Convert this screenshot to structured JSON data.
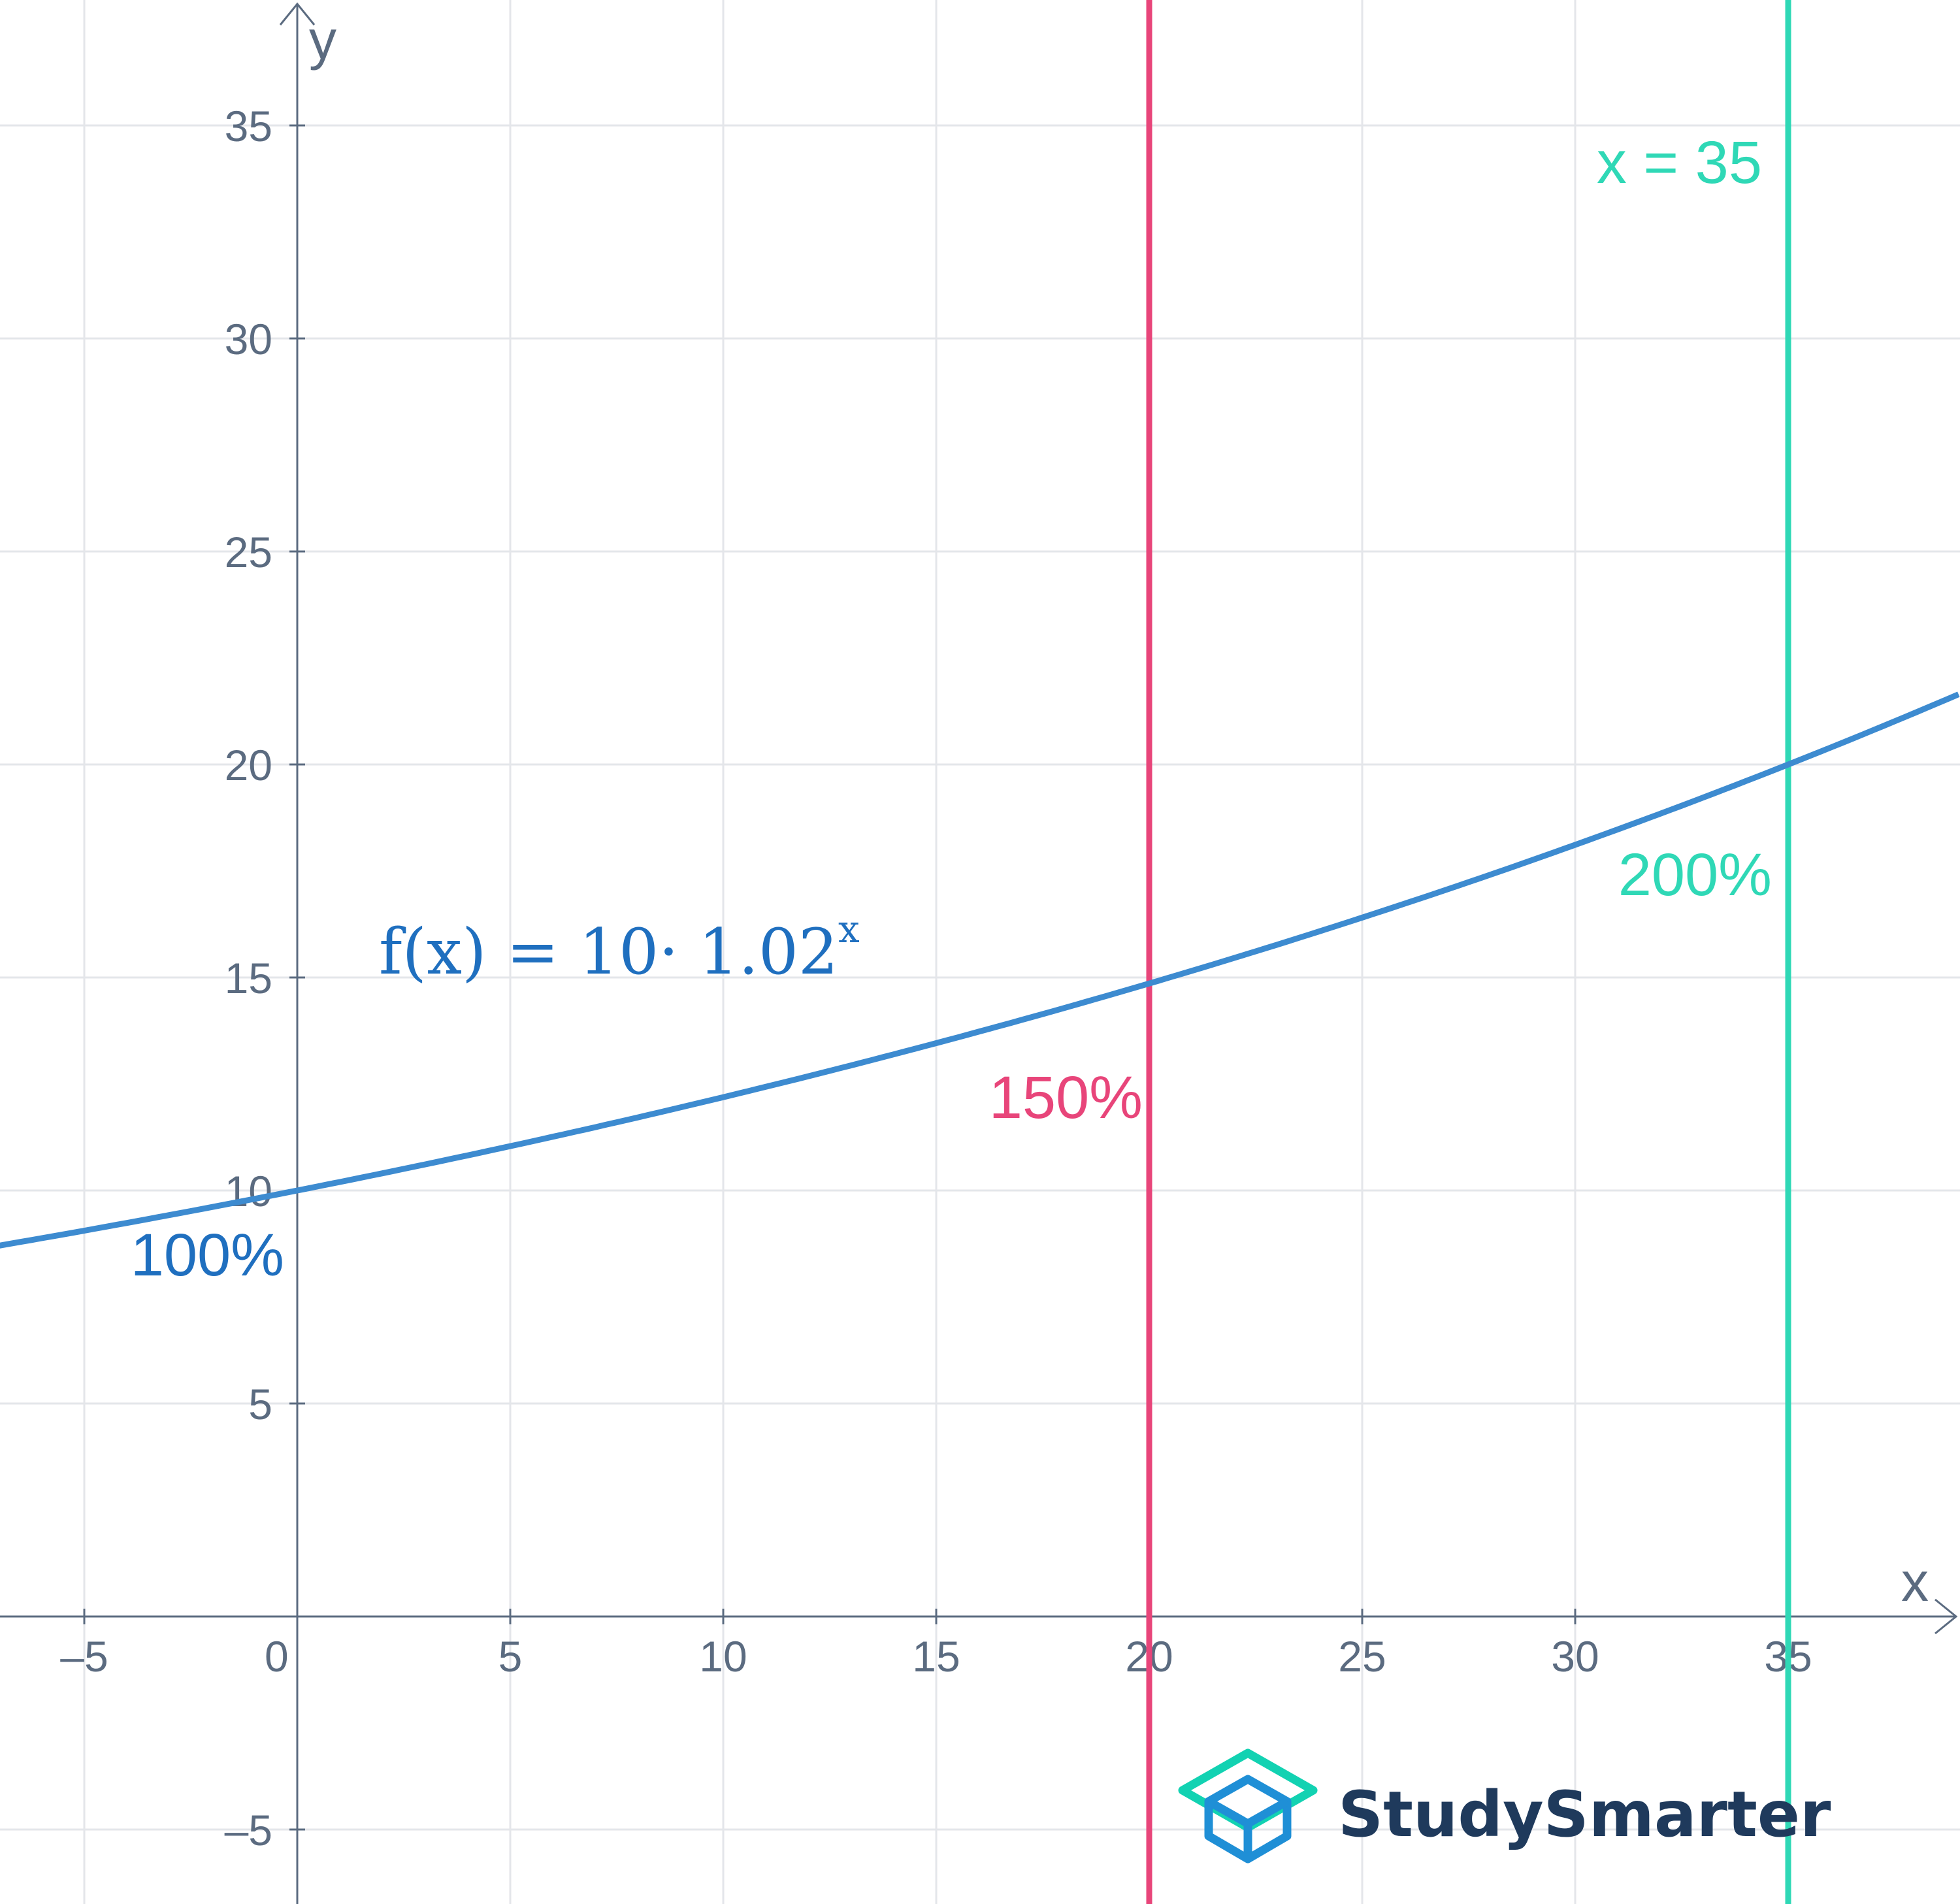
{
  "chart_data": {
    "type": "line",
    "title": "",
    "xlabel": "x",
    "ylabel": "y",
    "xlim": [
      -7,
      39
    ],
    "ylim": [
      -7,
      38
    ],
    "grid": true,
    "x_ticks": [
      -5,
      0,
      5,
      10,
      15,
      20,
      25,
      30,
      35
    ],
    "y_ticks": [
      -5,
      5,
      10,
      15,
      20,
      25,
      30,
      35
    ],
    "x_tick_labels": [
      "–5",
      "0",
      "5",
      "10",
      "15",
      "20",
      "25",
      "30",
      "35"
    ],
    "y_tick_labels": [
      "–5",
      "5",
      "10",
      "15",
      "20",
      "25",
      "30",
      "35"
    ],
    "series": [
      {
        "name": "f(x) = 10· 1.02",
        "exponent": "x",
        "color": "#3d8bd0",
        "label_color": "#1f6fbf",
        "base_value": 10,
        "growth_factor": 1.02
      }
    ],
    "vertical_lines": [
      {
        "x": 20,
        "color": "#e8457a"
      },
      {
        "x": 35,
        "color": "#2fd8b6",
        "label": "x = 35"
      }
    ],
    "annotations": [
      {
        "text": "100%",
        "x": 0,
        "y": 10,
        "color": "#1f6fbf"
      },
      {
        "text": "150%",
        "x": 20,
        "y": 15,
        "color": "#e8457a"
      },
      {
        "text": "200%",
        "x": 35,
        "y": 20,
        "color": "#2fd8b6"
      }
    ]
  },
  "branding": {
    "name": "StudySmarter",
    "logo_icon": "graduation-cap-cube-icon",
    "logo_colors": [
      "#12d2b2",
      "#1f8fd6"
    ]
  }
}
